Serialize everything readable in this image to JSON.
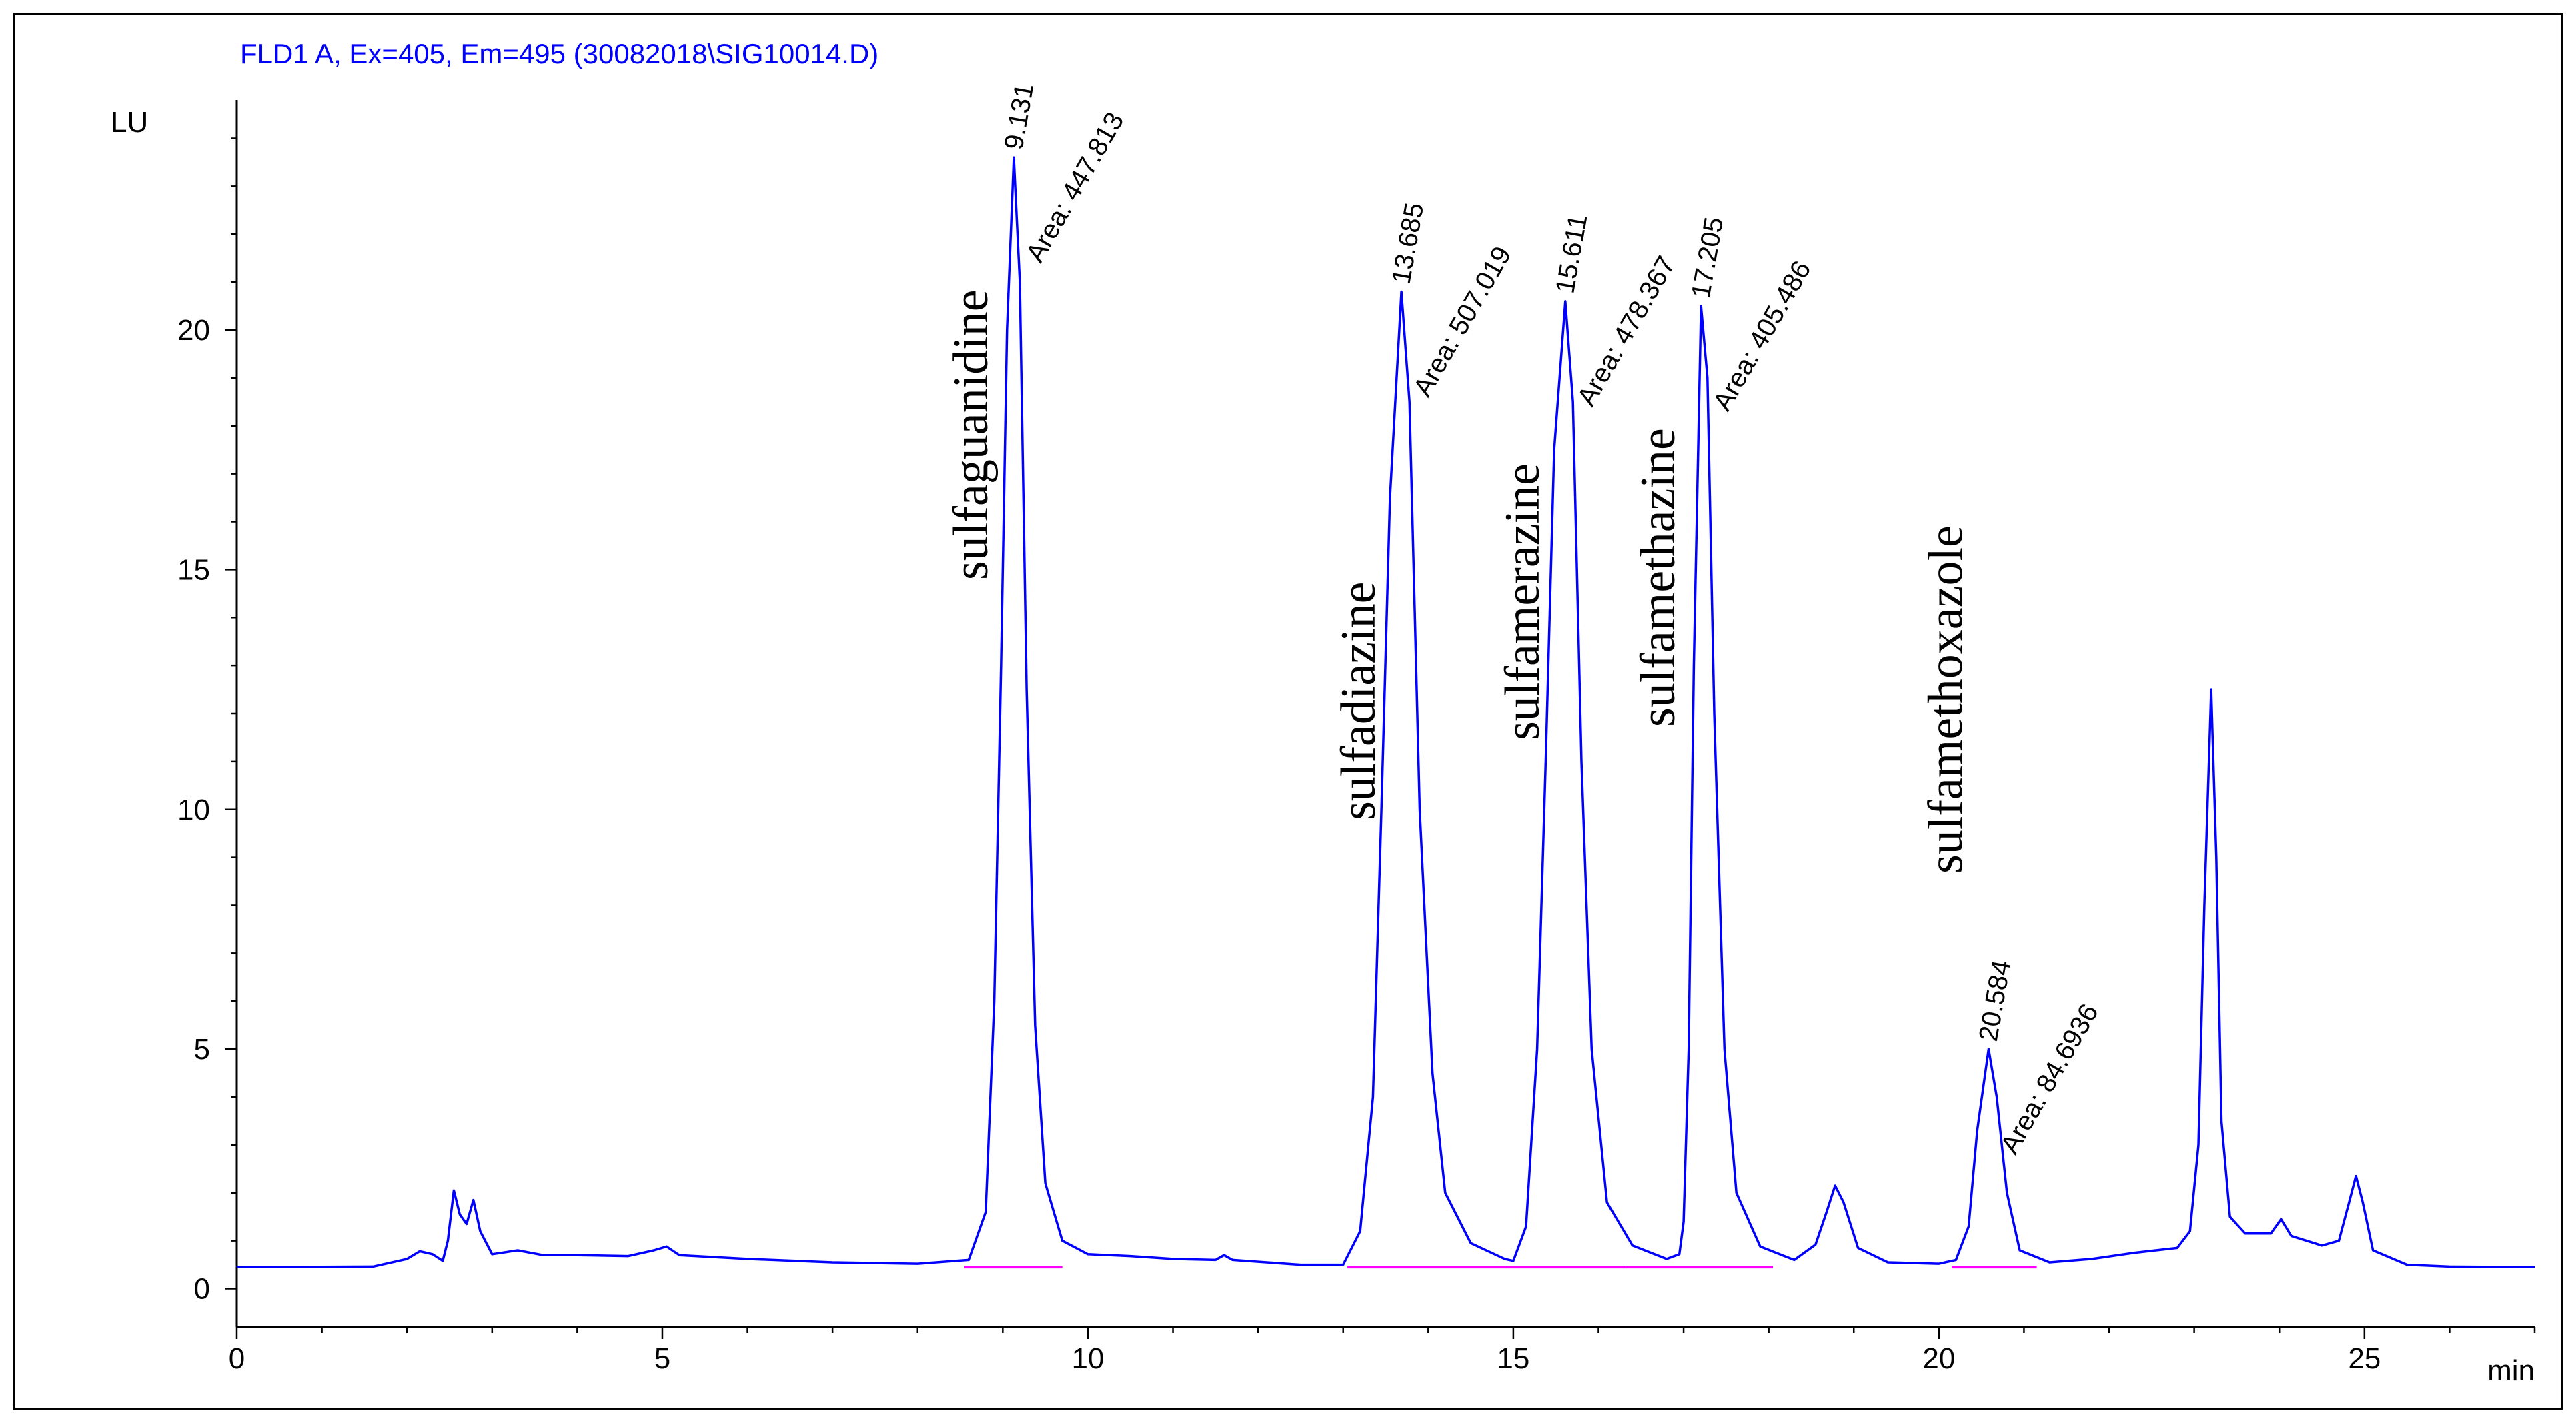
{
  "chart_data": {
    "type": "line",
    "title": "FLD1 A, Ex=405, Em=495 (30082018\\SIG10014.D)",
    "xlabel": "min",
    "ylabel": "LU",
    "xlim": [
      0,
      27
    ],
    "ylim": [
      -0.8,
      24.8
    ],
    "x_ticks": [
      0,
      5,
      10,
      15,
      20,
      25
    ],
    "y_ticks": [
      0,
      5,
      10,
      15,
      20
    ],
    "grid": false,
    "legend": "none",
    "series_color": "#0000ff",
    "baseline_color": "#ff00ff",
    "baseline_level": 0.45,
    "series": [
      {
        "values": [
          [
            0,
            0.45
          ],
          [
            1.6,
            0.46
          ],
          [
            2.0,
            0.62
          ],
          [
            2.15,
            0.78
          ],
          [
            2.3,
            0.72
          ],
          [
            2.42,
            0.58
          ],
          [
            2.48,
            1.0
          ],
          [
            2.55,
            2.05
          ],
          [
            2.62,
            1.55
          ],
          [
            2.7,
            1.35
          ],
          [
            2.78,
            1.85
          ],
          [
            2.86,
            1.2
          ],
          [
            3.0,
            0.72
          ],
          [
            3.3,
            0.8
          ],
          [
            3.6,
            0.7
          ],
          [
            4.0,
            0.7
          ],
          [
            4.6,
            0.68
          ],
          [
            4.9,
            0.8
          ],
          [
            5.05,
            0.88
          ],
          [
            5.2,
            0.7
          ],
          [
            6.0,
            0.62
          ],
          [
            7.0,
            0.55
          ],
          [
            8.0,
            0.52
          ],
          [
            8.6,
            0.6
          ],
          [
            8.8,
            1.6
          ],
          [
            8.9,
            6.0
          ],
          [
            8.98,
            13.0
          ],
          [
            9.05,
            20.0
          ],
          [
            9.13,
            23.6
          ],
          [
            9.2,
            21.0
          ],
          [
            9.28,
            12.5
          ],
          [
            9.38,
            5.5
          ],
          [
            9.5,
            2.2
          ],
          [
            9.7,
            1.0
          ],
          [
            10.0,
            0.72
          ],
          [
            10.5,
            0.68
          ],
          [
            11.0,
            0.62
          ],
          [
            11.5,
            0.6
          ],
          [
            11.6,
            0.7
          ],
          [
            11.7,
            0.6
          ],
          [
            12.5,
            0.5
          ],
          [
            13.0,
            0.5
          ],
          [
            13.2,
            1.2
          ],
          [
            13.35,
            4.0
          ],
          [
            13.45,
            10.0
          ],
          [
            13.55,
            16.5
          ],
          [
            13.685,
            20.8
          ],
          [
            13.78,
            18.5
          ],
          [
            13.9,
            10.0
          ],
          [
            14.05,
            4.5
          ],
          [
            14.2,
            2.0
          ],
          [
            14.5,
            0.95
          ],
          [
            14.9,
            0.62
          ],
          [
            15.0,
            0.58
          ],
          [
            15.15,
            1.3
          ],
          [
            15.28,
            5.0
          ],
          [
            15.38,
            11.0
          ],
          [
            15.48,
            17.5
          ],
          [
            15.611,
            20.6
          ],
          [
            15.7,
            18.5
          ],
          [
            15.8,
            11.0
          ],
          [
            15.92,
            5.0
          ],
          [
            16.1,
            1.8
          ],
          [
            16.4,
            0.9
          ],
          [
            16.8,
            0.62
          ],
          [
            16.95,
            0.72
          ],
          [
            17.0,
            1.4
          ],
          [
            17.06,
            5.0
          ],
          [
            17.12,
            13.0
          ],
          [
            17.205,
            20.5
          ],
          [
            17.28,
            19.0
          ],
          [
            17.36,
            12.0
          ],
          [
            17.48,
            5.0
          ],
          [
            17.62,
            2.0
          ],
          [
            17.9,
            0.88
          ],
          [
            18.3,
            0.6
          ],
          [
            18.55,
            0.92
          ],
          [
            18.68,
            1.6
          ],
          [
            18.78,
            2.15
          ],
          [
            18.88,
            1.8
          ],
          [
            19.05,
            0.85
          ],
          [
            19.4,
            0.55
          ],
          [
            20.0,
            0.52
          ],
          [
            20.2,
            0.6
          ],
          [
            20.35,
            1.3
          ],
          [
            20.45,
            3.3
          ],
          [
            20.584,
            5.0
          ],
          [
            20.68,
            4.0
          ],
          [
            20.8,
            2.0
          ],
          [
            20.95,
            0.8
          ],
          [
            21.3,
            0.55
          ],
          [
            21.8,
            0.62
          ],
          [
            22.3,
            0.75
          ],
          [
            22.8,
            0.85
          ],
          [
            22.95,
            1.2
          ],
          [
            23.05,
            3.0
          ],
          [
            23.12,
            8.0
          ],
          [
            23.2,
            12.5
          ],
          [
            23.26,
            9.0
          ],
          [
            23.32,
            3.5
          ],
          [
            23.42,
            1.5
          ],
          [
            23.6,
            1.15
          ],
          [
            23.9,
            1.15
          ],
          [
            24.02,
            1.45
          ],
          [
            24.14,
            1.1
          ],
          [
            24.5,
            0.9
          ],
          [
            24.7,
            1.0
          ],
          [
            24.82,
            1.8
          ],
          [
            24.9,
            2.35
          ],
          [
            24.98,
            1.8
          ],
          [
            25.1,
            0.8
          ],
          [
            25.5,
            0.5
          ],
          [
            26.0,
            0.46
          ],
          [
            27.0,
            0.45
          ]
        ]
      }
    ],
    "baselines": [
      {
        "x": [
          8.55,
          9.7
        ]
      },
      {
        "x": [
          13.05,
          14.9
        ]
      },
      {
        "x": [
          14.9,
          16.3
        ]
      },
      {
        "x": [
          16.3,
          18.05
        ]
      },
      {
        "x": [
          20.15,
          21.15
        ]
      }
    ],
    "peaks": [
      {
        "rt_label": "9.131",
        "area_label": "Area: 447.813",
        "compound": "sulfaguanidine",
        "rt": 9.131,
        "height": 23.6
      },
      {
        "rt_label": "13.685",
        "area_label": "Area: 507.019",
        "compound": "sulfadiazine",
        "rt": 13.685,
        "height": 20.8
      },
      {
        "rt_label": "15.611",
        "area_label": "Area: 478.367",
        "compound": "sulfamerazine",
        "rt": 15.611,
        "height": 20.6
      },
      {
        "rt_label": "17.205",
        "area_label": "Area: 405.486",
        "compound": "sulfamethazine",
        "rt": 17.205,
        "height": 20.5
      },
      {
        "rt_label": "20.584",
        "area_label": "Area: 84.6936",
        "compound": "sulfamethoxazole",
        "rt": 20.584,
        "height": 5.0
      }
    ]
  }
}
